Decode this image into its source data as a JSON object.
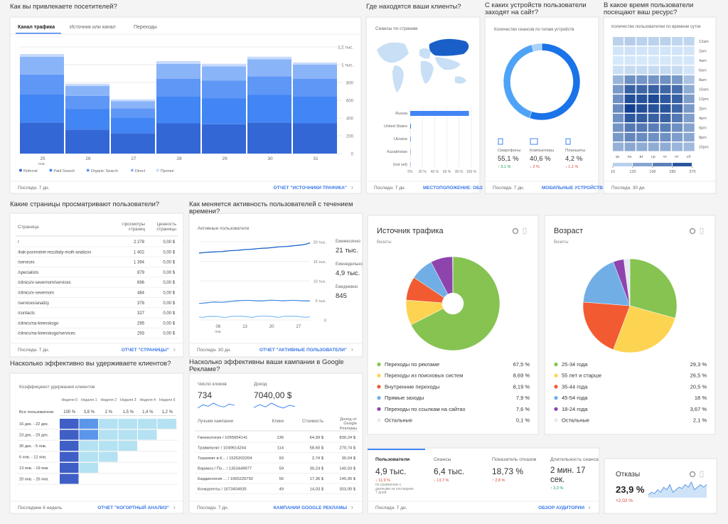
{
  "traffic": {
    "title": "Как вы привлекаете посетителей?",
    "tabs": [
      "Канал трафика",
      "Источник или канал",
      "Переходы"
    ],
    "type": "bar",
    "categories": [
      "25",
      "26",
      "27",
      "28",
      "29",
      "30",
      "31"
    ],
    "month": "янв.",
    "series": [
      {
        "name": "Referral",
        "color": "#3367d6",
        "values": [
          350,
          270,
          230,
          340,
          330,
          350,
          340
        ]
      },
      {
        "name": "Paid Search",
        "color": "#4285f4",
        "values": [
          320,
          230,
          170,
          300,
          290,
          310,
          300
        ]
      },
      {
        "name": "Organic Search",
        "color": "#5e97f6",
        "values": [
          220,
          150,
          110,
          200,
          200,
          210,
          200
        ]
      },
      {
        "name": "Direct",
        "color": "#8ab4f8",
        "values": [
          200,
          110,
          80,
          170,
          160,
          190,
          160
        ]
      },
      {
        "name": "Прочее",
        "color": "#c6dafc",
        "values": [
          30,
          25,
          20,
          30,
          30,
          30,
          25
        ]
      }
    ],
    "ylim": [
      0,
      1200
    ],
    "yticks": [
      0,
      200,
      400,
      600,
      800,
      {
        "value": 1000,
        "label": "1 тыс."
      },
      {
        "value": 1200,
        "label": "1,2 тыс."
      }
    ],
    "grid": true,
    "period": "Последн. 7 дн.",
    "link": "ОТЧЕТ \"ИСТОЧНИКИ ТРАФИКА\""
  },
  "geo": {
    "title": "Где находятся ваши клиенты?",
    "subtitle": "Сеансы по странам",
    "type": "bar",
    "categories": [
      "Russia",
      "United States",
      "Ukraine",
      "Kazakhstan",
      "(not set)"
    ],
    "values": [
      96,
      1.2,
      0.8,
      0.6,
      0.5
    ],
    "color": "#4285f4",
    "xlim": [
      0,
      100
    ],
    "xticks": [
      {
        "value": 0,
        "label": "0%"
      },
      {
        "value": 20,
        "label": "20 %"
      },
      {
        "value": 40,
        "label": "40 %"
      },
      {
        "value": 60,
        "label": "60 %"
      },
      {
        "value": 80,
        "label": "80 %"
      },
      {
        "value": 100,
        "label": "100 %"
      }
    ],
    "period": "Последн. 7 дн.",
    "link": "МЕСТОПОЛОЖЕНИЕ: ОБЗ"
  },
  "devices": {
    "title": "С каких устройств пользователи заходят на сайт?",
    "subtitle": "Количество сеансов по типам устройств",
    "type": "pie",
    "donut": true,
    "categories": [
      "Смартфоны",
      "Компьютеры",
      "Планшеты"
    ],
    "values": [
      55.1,
      40.6,
      4.2
    ],
    "value_labels": [
      "55,1 %",
      "40,6 %",
      "4,2 %"
    ],
    "changes": [
      "↑ 3,1 %",
      "↓ 2 %",
      "↓ 1,1 %"
    ],
    "change_colors": [
      "#0f9d58",
      "#db4437",
      "#db4437"
    ],
    "colors": [
      "#1a73e8",
      "#4fa3f7",
      "#a8d1fb"
    ],
    "period": "Последн. 7 дн.",
    "link": "МОБИЛЬНЫЕ УСТРОЙСТВ"
  },
  "hours": {
    "title": "В какое время пользователи посещают ваш ресурс?",
    "subtitle": "Количество пользователей по времени суток",
    "type": "heatmap",
    "rows": [
      "12am",
      "2am",
      "4am",
      "6am",
      "8am",
      "10am",
      "12pm",
      "2pm",
      "4pm",
      "6pm",
      "8pm",
      "10pm"
    ],
    "columns": [
      "вс",
      "пн",
      "вт",
      "ср",
      "чт",
      "пт",
      "сб"
    ],
    "values": [
      [
        60,
        70,
        60,
        60,
        60,
        50,
        50
      ],
      [
        20,
        25,
        20,
        20,
        20,
        20,
        20
      ],
      [
        10,
        15,
        10,
        10,
        12,
        12,
        15
      ],
      [
        30,
        40,
        40,
        40,
        40,
        40,
        20
      ],
      [
        120,
        200,
        190,
        190,
        200,
        180,
        90
      ],
      [
        180,
        300,
        290,
        300,
        290,
        270,
        140
      ],
      [
        200,
        340,
        330,
        350,
        320,
        300,
        170
      ],
      [
        210,
        370,
        340,
        330,
        330,
        290,
        180
      ],
      [
        200,
        320,
        310,
        300,
        300,
        250,
        170
      ],
      [
        190,
        250,
        250,
        240,
        240,
        200,
        160
      ],
      [
        180,
        220,
        210,
        200,
        200,
        170,
        150
      ],
      [
        130,
        150,
        140,
        140,
        140,
        120,
        110
      ]
    ],
    "legend_ticks": [
      10,
      120,
      190,
      280,
      370
    ],
    "colors": [
      "#d6e9fb",
      "#12408f"
    ],
    "period": "Последн. 30 дн."
  },
  "pages": {
    "title": "Какие страницы просматривают пользователи?",
    "headers": [
      "Страница",
      "Просмотры страниц",
      "Ценность страницы"
    ],
    "rows": [
      [
        "/",
        "2 278",
        "0,00 $"
      ],
      [
        "/kak-posmotret-rezultaty-moih-analizov",
        "1 402",
        "0,00 $"
      ],
      [
        "/services",
        "1 394",
        "0,00 $"
      ],
      [
        "/specialists",
        "879",
        "0,00 $"
      ],
      [
        "/clinics/v-severnom/services",
        "696",
        "0,00 $"
      ],
      [
        "/clinics/v-severnom",
        "484",
        "0,00 $"
      ],
      [
        "/services/analizy",
        "378",
        "0,00 $"
      ],
      [
        "/contacts",
        "327",
        "0,00 $"
      ],
      [
        "/clinics/na-kirenskogo",
        "295",
        "0,00 $"
      ],
      [
        "/clinics/na-kirenskogo/services",
        "293",
        "0,00 $"
      ]
    ],
    "period": "Последн. 7 дн.",
    "link": "ОТЧЕТ \"СТРАНИЦЫ\""
  },
  "activity": {
    "title": "Как меняется активность пользователей с течением времени?",
    "subtitle": "Активные пользователи",
    "type": "line",
    "categories": [
      null,
      null,
      null,
      null,
      null,
      "06",
      null,
      null,
      null,
      null,
      null,
      null,
      "13",
      null,
      null,
      null,
      null,
      null,
      null,
      "20",
      null,
      null,
      null,
      null,
      null,
      null,
      "27",
      null,
      null,
      null
    ],
    "month": "янв.",
    "series": [
      {
        "name": "Ежемесячно",
        "total": "21 тыс.",
        "color": "#1a62c7",
        "values": [
          17100,
          17200,
          17300,
          17350,
          17400,
          17450,
          17500,
          17600,
          17700,
          17750,
          17800,
          17900,
          18000,
          18050,
          18100,
          18200,
          18300,
          18350,
          18400,
          18500,
          18600,
          18700,
          18750,
          18800,
          18900,
          19000,
          19100,
          19200,
          19400,
          19700
        ]
      },
      {
        "name": "Еженедельно",
        "total": "4,9 тыс.",
        "color": "#4a90e2",
        "values": [
          4200,
          4300,
          4400,
          4500,
          4600,
          4550,
          4500,
          4600,
          4700,
          4800,
          4900,
          4950,
          5000,
          5000,
          4950,
          4900,
          4850,
          4900,
          5000,
          5050,
          5000,
          4950,
          4900,
          4950,
          5000,
          5000,
          4950,
          4900,
          4850,
          4900
        ]
      },
      {
        "name": "Ежедневно",
        "total": "845",
        "color": "#8cc4f5",
        "values": [
          820,
          600,
          850,
          900,
          920,
          880,
          700,
          620,
          880,
          950,
          960,
          940,
          900,
          720,
          650,
          900,
          980,
          990,
          950,
          920,
          740,
          660,
          930,
          960,
          970,
          940,
          900,
          720,
          650,
          845
        ]
      }
    ],
    "ylim": [
      0,
      20000
    ],
    "yticks": [
      0,
      {
        "value": 5000,
        "label": "5 тыс."
      },
      {
        "value": 10000,
        "label": "10 тыс."
      },
      {
        "value": 15000,
        "label": "15 тыс."
      },
      {
        "value": 20000,
        "label": "20 тыс."
      }
    ],
    "period": "Последн. 30 дн.",
    "link": "ОТЧЕТ \"АКТИВНЫЕ ПОЛЬЗОВАТЕЛИ\""
  },
  "retention": {
    "title": "Насколько эффективно вы удерживаете клиентов?",
    "subtitle": "Коэффициент удержания клиентов",
    "headers": [
      "Неделя 0",
      "Неделя 1",
      "Неделя 2",
      "Неделя 3",
      "Неделя 4",
      "Неделя 5"
    ],
    "all_label": "Все пользователи",
    "all_values": [
      100,
      3.8,
      2,
      1.5,
      1.4,
      1.2
    ],
    "all_value_labels": [
      "100 %",
      "3,8 %",
      "2 %",
      "1,5 %",
      "1,4 %",
      "1,2 %"
    ],
    "cohorts": [
      {
        "label": "16 дек. - 22 дек.",
        "values": [
          100,
          4.5,
          2.2,
          1.6,
          1.5,
          1.2
        ]
      },
      {
        "label": "23 дек. - 29 дек.",
        "values": [
          100,
          3.9,
          1.8,
          1.4,
          1.3
        ]
      },
      {
        "label": "30 дек. - 5 янв.",
        "values": [
          100,
          3.2,
          1.9,
          1.4
        ]
      },
      {
        "label": "6 янв. - 12 янв.",
        "values": [
          100,
          3.5,
          1.6
        ]
      },
      {
        "label": "13 янв. - 19 янв.",
        "values": [
          100,
          3.3
        ]
      },
      {
        "label": "20 янв. - 26 янв.",
        "values": [
          100
        ]
      }
    ],
    "period": "Последние 6 недель",
    "link": "ОТЧЕТ \"КОГОРТНЫЙ АНАЛИЗ\""
  },
  "ads": {
    "title": "Насколько эффективны ваши кампании в Google Рекламе?",
    "clicks_label": "Число кликов",
    "clicks": "734",
    "clicks_trend": [
      90,
      105,
      98,
      112,
      100,
      95,
      108,
      102
    ],
    "revenue_label": "Доход",
    "revenue": "7040,00 $",
    "revenue_trend": [
      900,
      1100,
      950,
      1200,
      1000,
      870,
      1050,
      980
    ],
    "headers": [
      "Лучшие кампании",
      "Клики",
      "Стоимость",
      "Доход от Google Рекламы"
    ],
    "rows": [
      [
        "Гинекология / 1055654141",
        "136",
        "64,99 $",
        "830,24 $"
      ],
      [
        "Травмпункт / 1049614244",
        "114",
        "58,60 $",
        "270,74 $"
      ],
      [
        "Терапевт в К... / 1525202204",
        "93",
        "2,74 $",
        "30,04 $"
      ],
      [
        "Варикоз / По... / 1353449977",
        "59",
        "30,24 $",
        "140,03 $"
      ],
      [
        "Кардиология ... / 1065226792",
        "56",
        "17,36 $",
        "145,00 $"
      ],
      [
        "Конкуренты / 1673404935",
        "49",
        "14,03 $",
        "303,00 $"
      ]
    ],
    "period": "Последн. 7 дн.",
    "link": "КАМПАНИИ GOOGLE РЕКЛАМЫ"
  },
  "source": {
    "title": "Источник трафика",
    "subtitle": "Визиты",
    "type": "pie",
    "donut": true,
    "categories": [
      "Переходы по рекламе",
      "Переходы из поисковых систем",
      "Внутренние переходы",
      "Прямые заходы",
      "Переходы по ссылкам на сайтах",
      "Остальные"
    ],
    "values": [
      67.5,
      8.69,
      8.19,
      7.9,
      7.6,
      0.1
    ],
    "value_labels": [
      "67,5 %",
      "8,69 %",
      "8,19 %",
      "7,9 %",
      "7,6 %",
      "0,1 %"
    ],
    "colors": [
      "#86c351",
      "#fdd451",
      "#f25b32",
      "#72aee6",
      "#8e44ad",
      "#e6e8f4"
    ]
  },
  "age": {
    "title": "Возраст",
    "subtitle": "Визиты",
    "type": "pie",
    "donut": false,
    "categories": [
      "25-34 года",
      "55 лет и старше",
      "35-44 года",
      "45-54 года",
      "18-24 года",
      "Остальные"
    ],
    "values": [
      29.3,
      26.5,
      20.5,
      18,
      3.67,
      2.1
    ],
    "value_labels": [
      "29,3 %",
      "26,5 %",
      "20,5 %",
      "18 %",
      "3,67 %",
      "2,1 %"
    ],
    "colors": [
      "#86c351",
      "#fdd451",
      "#f25b32",
      "#72aee6",
      "#8e44ad",
      "#e6e8f4"
    ]
  },
  "audience": {
    "metrics": [
      {
        "label": "Пользователи",
        "value": "4,9 тыс.",
        "change": "↓ 11,9 %",
        "change_color": "#db4437"
      },
      {
        "label": "Сеансы",
        "value": "6,4 тыс.",
        "change": "↓ 13,7 %",
        "change_color": "#db4437"
      },
      {
        "label": "Показатель отказов",
        "value": "18,73 %",
        "change": "↑ 2,8 %",
        "change_color": "#db4437"
      },
      {
        "label": "Длительность сеанса",
        "value": "2 мин. 17 сек.",
        "change": "↑ 3,3 %",
        "change_color": "#0f9d58"
      }
    ],
    "note": "по сравнению с данными за последние 7 дней",
    "period": "Последн. 7 дн.",
    "link": "ОБЗОР АУДИТОРИИ"
  },
  "bounce": {
    "title": "Отказы",
    "value": "23,9 %",
    "change": "+2,02 %",
    "trend": [
      21,
      22,
      21.5,
      23,
      22,
      24,
      23,
      25,
      22,
      23,
      24,
      23.5,
      25,
      24,
      26,
      23,
      24,
      25,
      24,
      25
    ]
  }
}
